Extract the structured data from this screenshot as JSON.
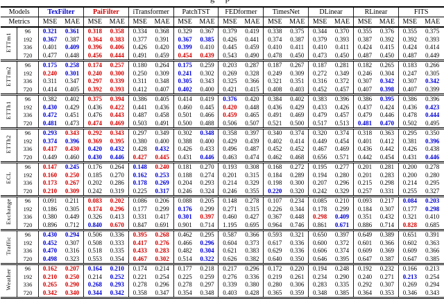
{
  "page": {
    "caption_fragment": "g p"
  },
  "table": {
    "corner_top": "Models",
    "corner_bottom": "Metrics",
    "metric_labels": [
      "MSE",
      "MAE"
    ]
  },
  "chart_data": {
    "type": "table",
    "highlight_colors": {
      "best": "#d40000",
      "second_best": "#0000d4"
    },
    "models": [
      {
        "name": "TexFilter",
        "color": "#0000d4",
        "bold": true
      },
      {
        "name": "PaiFilter",
        "color": "#d40000",
        "bold": true
      },
      {
        "name": "iTransformer"
      },
      {
        "name": "PatchTST"
      },
      {
        "name": "FEDformer"
      },
      {
        "name": "TimesNet"
      },
      {
        "name": "DLinear"
      },
      {
        "name": "RLinear"
      },
      {
        "name": "FITS"
      }
    ],
    "metrics": [
      "MSE",
      "MAE"
    ],
    "horizons": [
      "96",
      "192",
      "336",
      "720"
    ],
    "cell_style_key": {
      "r": "red-bold",
      "b": "blue-bold",
      "": "plain"
    },
    "datasets": [
      {
        "name": "ETTm1",
        "rows": [
          {
            "h": "96",
            "v": [
              "0.321b",
              "0.361b",
              "0.318r",
              "0.358r",
              "0.334",
              "0.368",
              "0.329",
              "0.367",
              "0.379",
              "0.419",
              "0.338",
              "0.375",
              "0.344",
              "0.370",
              "0.355",
              "0.376",
              "0.355",
              "0.375"
            ]
          },
          {
            "h": "192",
            "v": [
              "0.367b",
              "0.387",
              "0.364r",
              "0.383r",
              "0.377",
              "0.391",
              "0.367b",
              "0.385b",
              "0.426",
              "0.441",
              "0.374",
              "0.387",
              "0.379",
              "0.393",
              "0.387",
              "0.392",
              "0.392",
              "0.393"
            ]
          },
          {
            "h": "336",
            "v": [
              "0.401",
              "0.409b",
              "0.396r",
              "0.406r",
              "0.426",
              "0.420",
              "0.399b",
              "0.410",
              "0.445",
              "0.459",
              "0.410",
              "0.411",
              "0.410",
              "0.411",
              "0.424",
              "0.415",
              "0.424",
              "0.414"
            ]
          },
          {
            "h": "720",
            "v": [
              "0.477",
              "0.448",
              "0.456r",
              "0.444r",
              "0.491",
              "0.459",
              "0.454r",
              "0.439r",
              "0.543",
              "0.490",
              "0.478",
              "0.450",
              "0.473",
              "0.450",
              "0.487",
              "0.450",
              "0.487",
              "0.449"
            ]
          }
        ]
      },
      {
        "name": "ETTm2",
        "rows": [
          {
            "h": "96",
            "v": [
              "0.175b",
              "0.258b",
              "0.174r",
              "0.257r",
              "0.180",
              "0.264",
              "0.175b",
              "0.259",
              "0.203",
              "0.287",
              "0.187",
              "0.267",
              "0.187",
              "0.281",
              "0.182",
              "0.265",
              "0.183",
              "0.266"
            ]
          },
          {
            "h": "192",
            "v": [
              "0.240r",
              "0.301b",
              "0.240r",
              "0.300r",
              "0.250",
              "0.309",
              "0.241b",
              "0.302",
              "0.269",
              "0.328",
              "0.249",
              "0.309",
              "0.272",
              "0.349",
              "0.246",
              "0.304",
              "0.247",
              "0.305"
            ]
          },
          {
            "h": "336",
            "v": [
              "0.311",
              "0.347",
              "0.297r",
              "0.339r",
              "0.311",
              "0.348",
              "0.305b",
              "0.343",
              "0.325",
              "0.366",
              "0.321",
              "0.351",
              "0.316",
              "0.372",
              "0.307",
              "0.342b",
              "0.307",
              "0.342b"
            ]
          },
          {
            "h": "720",
            "v": [
              "0.414",
              "0.405",
              "0.392r",
              "0.393r",
              "0.412",
              "0.407",
              "0.402b",
              "0.400",
              "0.421",
              "0.415",
              "0.408",
              "0.403",
              "0.452",
              "0.457",
              "0.407",
              "0.398b",
              "0.407",
              "0.399"
            ]
          }
        ]
      },
      {
        "name": "ETTh1",
        "rows": [
          {
            "h": "96",
            "v": [
              "0.382",
              "0.402",
              "0.375r",
              "0.394r",
              "0.386",
              "0.405",
              "0.414",
              "0.419",
              "0.376b",
              "0.420",
              "0.384",
              "0.402",
              "0.383",
              "0.396",
              "0.386",
              "0.395b",
              "0.386",
              "0.396"
            ]
          },
          {
            "h": "192",
            "v": [
              "0.430b",
              "0.429",
              "0.436",
              "0.422r",
              "0.441",
              "0.436",
              "0.460",
              "0.445",
              "0.420r",
              "0.448",
              "0.436",
              "0.429",
              "0.433",
              "0.426",
              "0.437",
              "0.424",
              "0.436",
              "0.423b"
            ]
          },
          {
            "h": "336",
            "v": [
              "0.472b",
              "0.451",
              "0.476",
              "0.443r",
              "0.487",
              "0.458",
              "0.501",
              "0.466",
              "0.459r",
              "0.465",
              "0.491",
              "0.469",
              "0.479",
              "0.457",
              "0.479",
              "0.446",
              "0.478",
              "0.444b"
            ]
          },
          {
            "h": "720",
            "v": [
              "0.481b",
              "0.473",
              "0.474r",
              "0.469r",
              "0.503",
              "0.491",
              "0.500",
              "0.488",
              "0.506",
              "0.507",
              "0.521",
              "0.500",
              "0.517",
              "0.513",
              "0.481b",
              "0.470b",
              "0.502",
              "0.495"
            ]
          }
        ]
      },
      {
        "name": "ETTh2",
        "rows": [
          {
            "h": "96",
            "v": [
              "0.293b",
              "0.343r",
              "0.292r",
              "0.343r",
              "0.297",
              "0.349",
              "0.302",
              "0.348b",
              "0.358",
              "0.397",
              "0.340",
              "0.374",
              "0.320",
              "0.374",
              "0.318",
              "0.363",
              "0.295",
              "0.350"
            ]
          },
          {
            "h": "192",
            "v": [
              "0.374b",
              "0.396b",
              "0.369r",
              "0.395r",
              "0.380",
              "0.400",
              "0.388",
              "0.400",
              "0.429",
              "0.439",
              "0.402",
              "0.414",
              "0.449",
              "0.454",
              "0.401",
              "0.412",
              "0.381",
              "0.396b"
            ]
          },
          {
            "h": "336",
            "v": [
              "0.417r",
              "0.430r",
              "0.420b",
              "0.432b",
              "0.428",
              "0.432b",
              "0.426",
              "0.433",
              "0.496",
              "0.487",
              "0.452",
              "0.452",
              "0.467",
              "0.469",
              "0.436",
              "0.442",
              "0.426",
              "0.438"
            ]
          },
          {
            "h": "720",
            "v": [
              "0.449",
              "0.460",
              "0.430b",
              "0.446b",
              "0.427r",
              "0.445r",
              "0.431",
              "0.446b",
              "0.463",
              "0.474",
              "0.462",
              "0.468",
              "0.656",
              "0.571",
              "0.442",
              "0.454",
              "0.431",
              "0.446b"
            ]
          }
        ]
      },
      {
        "name": "ECL",
        "rows": [
          {
            "h": "96",
            "v": [
              "0.147r",
              "0.245b",
              "0.176",
              "0.264",
              "0.148b",
              "0.240r",
              "0.181",
              "0.270",
              "0.193",
              "0.308",
              "0.168",
              "0.272",
              "0.195",
              "0.277",
              "0.201",
              "0.281",
              "0.200",
              "0.278"
            ]
          },
          {
            "h": "192",
            "v": [
              "0.160r",
              "0.250r",
              "0.185",
              "0.270",
              "0.162b",
              "0.253b",
              "0.188",
              "0.274",
              "0.201",
              "0.315",
              "0.184",
              "0.289",
              "0.194",
              "0.280",
              "0.201",
              "0.283",
              "0.200",
              "0.280"
            ]
          },
          {
            "h": "336",
            "v": [
              "0.173r",
              "0.267r",
              "0.202",
              "0.286",
              "0.178b",
              "0.269b",
              "0.204",
              "0.293",
              "0.214",
              "0.329",
              "0.198",
              "0.300",
              "0.207",
              "0.296",
              "0.215",
              "0.298",
              "0.214",
              "0.295"
            ]
          },
          {
            "h": "720",
            "v": [
              "0.210r",
              "0.309r",
              "0.242",
              "0.319",
              "0.225",
              "0.317b",
              "0.246",
              "0.324",
              "0.246",
              "0.355",
              "0.220b",
              "0.320",
              "0.242",
              "0.329",
              "0.257",
              "0.331",
              "0.255",
              "0.327"
            ]
          }
        ]
      },
      {
        "name": "Exchange",
        "rows": [
          {
            "h": "96",
            "v": [
              "0.091",
              "0.211",
              "0.083r",
              "0.202r",
              "0.086",
              "0.206",
              "0.088",
              "0.205",
              "0.148",
              "0.278",
              "0.107",
              "0.234",
              "0.085",
              "0.210",
              "0.093",
              "0.217",
              "0.084b",
              "0.203b"
            ]
          },
          {
            "h": "192",
            "v": [
              "0.186",
              "0.305",
              "0.174r",
              "0.296r",
              "0.177",
              "0.299",
              "0.176b",
              "0.299",
              "0.271",
              "0.315",
              "0.226",
              "0.344",
              "0.178",
              "0.299",
              "0.184",
              "0.307",
              "0.177",
              "0.298b"
            ]
          },
          {
            "h": "336",
            "v": [
              "0.380",
              "0.449",
              "0.326",
              "0.413",
              "0.331",
              "0.417",
              "0.301b",
              "0.397r",
              "0.460",
              "0.427",
              "0.367",
              "0.448",
              "0.298r",
              "0.409b",
              "0.351",
              "0.432",
              "0.321",
              "0.410"
            ]
          },
          {
            "h": "720",
            "v": [
              "0.896",
              "0.712",
              "0.840b",
              "0.670r",
              "0.847",
              "0.691",
              "0.901",
              "0.714",
              "1.195",
              "0.695",
              "0.964",
              "0.746",
              "0.861",
              "0.671b",
              "0.886",
              "0.714",
              "0.828r",
              "0.685"
            ]
          }
        ]
      },
      {
        "name": "Traffic",
        "rows": [
          {
            "h": "96",
            "v": [
              "0.430b",
              "0.294b",
              "0.506",
              "0.336",
              "0.395r",
              "0.268r",
              "0.462",
              "0.295",
              "0.587",
              "0.366",
              "0.593",
              "0.321",
              "0.650",
              "0.397",
              "0.649",
              "0.389",
              "0.651",
              "0.391"
            ]
          },
          {
            "h": "192",
            "v": [
              "0.452b",
              "0.307",
              "0.508",
              "0.333",
              "0.417r",
              "0.276r",
              "0.466",
              "0.296b",
              "0.604",
              "0.373",
              "0.617",
              "0.336",
              "0.600",
              "0.372",
              "0.601",
              "0.366",
              "0.602",
              "0.363"
            ]
          },
          {
            "h": "336",
            "v": [
              "0.470b",
              "0.316",
              "0.518",
              "0.335",
              "0.433r",
              "0.283r",
              "0.482",
              "0.304b",
              "0.621",
              "0.383",
              "0.629",
              "0.336",
              "0.606",
              "0.374",
              "0.609",
              "0.369",
              "0.609",
              "0.366"
            ]
          },
          {
            "h": "720",
            "v": [
              "0.498b",
              "0.323",
              "0.553",
              "0.354",
              "0.467r",
              "0.302r",
              "0.514",
              "0.322b",
              "0.626",
              "0.382",
              "0.640",
              "0.350",
              "0.646",
              "0.395",
              "0.647",
              "0.387",
              "0.647",
              "0.385"
            ]
          }
        ]
      },
      {
        "name": "Weather",
        "rows": [
          {
            "h": "96",
            "v": [
              "0.162r",
              "0.207r",
              "0.164b",
              "0.210b",
              "0.174",
              "0.214",
              "0.177",
              "0.218",
              "0.217",
              "0.296",
              "0.172",
              "0.220",
              "0.194",
              "0.248",
              "0.192",
              "0.232",
              "0.166",
              "0.213"
            ]
          },
          {
            "h": "192",
            "v": [
              "0.210r",
              "0.250r",
              "0.214",
              "0.252b",
              "0.221",
              "0.254",
              "0.225",
              "0.259",
              "0.276",
              "0.336",
              "0.219",
              "0.261",
              "0.234",
              "0.290",
              "0.240",
              "0.271",
              "0.213b",
              "0.254"
            ]
          },
          {
            "h": "336",
            "v": [
              "0.265r",
              "0.290r",
              "0.268b",
              "0.293b",
              "0.278",
              "0.296",
              "0.278",
              "0.297",
              "0.339",
              "0.380",
              "0.280",
              "0.306",
              "0.283",
              "0.335",
              "0.292",
              "0.307",
              "0.269",
              "0.294"
            ]
          },
          {
            "h": "720",
            "v": [
              "0.342r",
              "0.340r",
              "0.344b",
              "0.342b",
              "0.358",
              "0.347",
              "0.354",
              "0.348",
              "0.403",
              "0.428",
              "0.365",
              "0.359",
              "0.348",
              "0.385",
              "0.364",
              "0.353",
              "0.346",
              "0.343"
            ]
          }
        ]
      }
    ]
  }
}
